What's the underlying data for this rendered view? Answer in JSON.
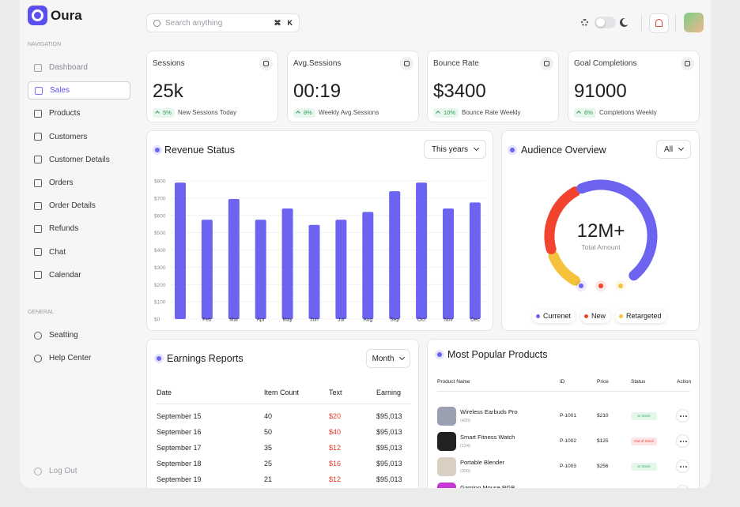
{
  "brand": "Oura",
  "sidebar": {
    "nav_heading": "NAVIGATION",
    "nav": [
      "Dashboard",
      "Sales",
      "Products",
      "Customers",
      "Customer Details",
      "Orders",
      "Order Details",
      "Refunds",
      "Chat",
      "Calendar"
    ],
    "general_heading": "GENERAL",
    "general": [
      "Seatting",
      "Help Center"
    ],
    "logout": "Log Out"
  },
  "search": {
    "placeholder": "Search anything",
    "shortcut": [
      "⌘",
      "K"
    ]
  },
  "stats": [
    {
      "title": "Sessions",
      "value": "25k",
      "change": "5%",
      "note": "New Sessions Today"
    },
    {
      "title": "Avg.Sessions",
      "value": "00:19",
      "change": "8%",
      "note": "Weekly Avg.Sessions"
    },
    {
      "title": "Bounce Rate",
      "value": "$3400",
      "change": "10%",
      "note": "Bounce Rate Weekly"
    },
    {
      "title": "Goal Completions",
      "value": "91000",
      "change": "6%",
      "note": "Completions Weekly"
    }
  ],
  "chart_data": [
    {
      "type": "bar",
      "title": "Revenue Status",
      "filter": "This years",
      "categories": [
        null,
        "Feb",
        "Mar",
        "Apr",
        "May",
        "Jun",
        "Jul",
        "Aug",
        "Sep",
        "Oct",
        "Nov",
        "Dec"
      ],
      "values": [
        790,
        575,
        695,
        575,
        640,
        545,
        575,
        620,
        740,
        790,
        640,
        675
      ],
      "color": "#6c63f0",
      "ylim": [
        0,
        800
      ],
      "yticks": [
        {
          "value": 0,
          "label": "$0"
        },
        {
          "value": 100,
          "label": "$100"
        },
        {
          "value": 200,
          "label": "$200"
        },
        {
          "value": 300,
          "label": "$300"
        },
        {
          "value": 400,
          "label": "$400"
        },
        {
          "value": 500,
          "label": "$500"
        },
        {
          "value": 600,
          "label": "$600"
        },
        {
          "value": 700,
          "label": "$700"
        },
        {
          "value": 800,
          "label": "$800"
        }
      ],
      "grid": true
    },
    {
      "type": "gauge",
      "title": "Audience Overview",
      "filter": "All",
      "center_value": "12M+",
      "center_label": "Total Amount",
      "series": [
        {
          "name": "Currenet",
          "color": "#6c63f0",
          "values": [
            52
          ]
        },
        {
          "name": "New",
          "color": "#f2432f",
          "values": [
            24
          ]
        },
        {
          "name": "Retargeted",
          "color": "#f5c33b",
          "values": [
            12
          ]
        }
      ]
    }
  ],
  "earnings": {
    "title": "Earnings Reports",
    "filter": "Month",
    "columns": [
      "Date",
      "Item Count",
      "Text",
      "Earning"
    ],
    "rows": [
      [
        "September 15",
        "40",
        "$20",
        "$95,013"
      ],
      [
        "September 16",
        "50",
        "$40",
        "$95,013"
      ],
      [
        "September 17",
        "35",
        "$12",
        "$95,013"
      ],
      [
        "September 18",
        "25",
        "$16",
        "$95,013"
      ],
      [
        "September 19",
        "21",
        "$12",
        "$95,013"
      ]
    ]
  },
  "products": {
    "title": "Most Popular Products",
    "columns": [
      "Product Name",
      "ID",
      "Price",
      "Status",
      "Action"
    ],
    "rows": [
      {
        "name": "Wireless Earbuds Pro",
        "count": "(420)",
        "id": "P-1001",
        "price": "$210",
        "status": "In Stock"
      },
      {
        "name": "Smart Fitness Watch",
        "count": "(134)",
        "id": "P-1002",
        "price": "$125",
        "status": "Out of Stock"
      },
      {
        "name": "Portable Blender",
        "count": "(200)",
        "id": "P-1003",
        "price": "$256",
        "status": "In Stock"
      },
      {
        "name": "Gaming Mouse RGB"
      }
    ]
  }
}
